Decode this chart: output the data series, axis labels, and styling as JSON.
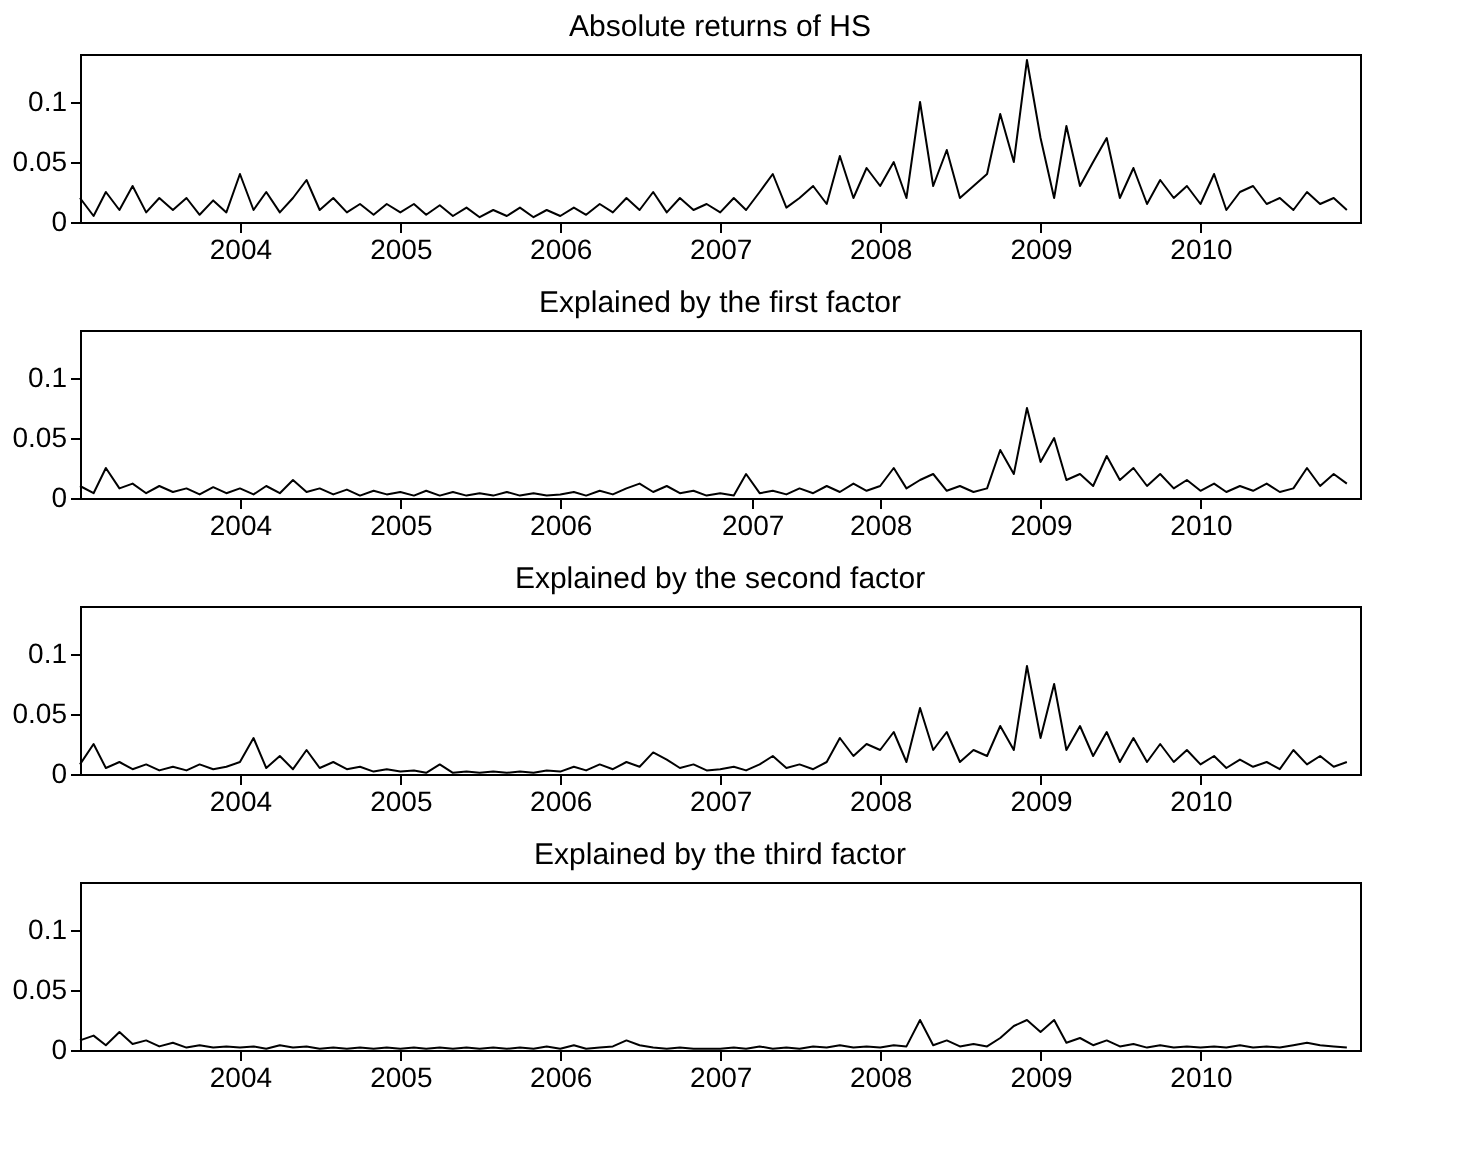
{
  "chart_data": [
    {
      "type": "line",
      "title": "Absolute returns of HS",
      "x": [
        "2003-01",
        "2003-02",
        "2003-03",
        "2003-04",
        "2003-05",
        "2003-06",
        "2003-07",
        "2003-08",
        "2003-09",
        "2003-10",
        "2003-11",
        "2003-12",
        "2004-01",
        "2004-02",
        "2004-03",
        "2004-04",
        "2004-05",
        "2004-06",
        "2004-07",
        "2004-08",
        "2004-09",
        "2004-10",
        "2004-11",
        "2004-12",
        "2005-01",
        "2005-02",
        "2005-03",
        "2005-04",
        "2005-05",
        "2005-06",
        "2005-07",
        "2005-08",
        "2005-09",
        "2005-10",
        "2005-11",
        "2005-12",
        "2006-01",
        "2006-02",
        "2006-03",
        "2006-04",
        "2006-05",
        "2006-06",
        "2006-07",
        "2006-08",
        "2006-09",
        "2006-10",
        "2006-11",
        "2006-12",
        "2007-01",
        "2007-02",
        "2007-03",
        "2007-04",
        "2007-05",
        "2007-06",
        "2007-07",
        "2007-08",
        "2007-09",
        "2007-10",
        "2007-11",
        "2007-12",
        "2008-01",
        "2008-02",
        "2008-03",
        "2008-04",
        "2008-05",
        "2008-06",
        "2008-07",
        "2008-08",
        "2008-09",
        "2008-10",
        "2008-11",
        "2008-12",
        "2009-01",
        "2009-02",
        "2009-03",
        "2009-04",
        "2009-05",
        "2009-06",
        "2009-07",
        "2009-08",
        "2009-09",
        "2009-10",
        "2009-11",
        "2009-12",
        "2010-01",
        "2010-02",
        "2010-03",
        "2010-04",
        "2010-05",
        "2010-06",
        "2010-07",
        "2010-08",
        "2010-09",
        "2010-10",
        "2010-11",
        "2010-12"
      ],
      "xlim": [
        "2003-01-01",
        "2010-12-31"
      ],
      "ylim": [
        0,
        0.14
      ],
      "yticks": [
        0,
        0.05,
        0.1
      ],
      "xticks": [
        {
          "value": "2004-01-01",
          "label": "2004"
        },
        {
          "value": "2005-01-01",
          "label": "2005"
        },
        {
          "value": "2006-01-01",
          "label": "2006"
        },
        {
          "value": "2007-01-01",
          "label": "2007"
        },
        {
          "value": "2008-01-01",
          "label": "2008"
        },
        {
          "value": "2009-01-01",
          "label": "2009"
        },
        {
          "value": "2010-01-01",
          "label": "2010"
        }
      ],
      "series": [
        {
          "color": "#000000",
          "values": [
            0.02,
            0.005,
            0.025,
            0.01,
            0.03,
            0.008,
            0.02,
            0.01,
            0.02,
            0.006,
            0.018,
            0.008,
            0.04,
            0.01,
            0.025,
            0.008,
            0.02,
            0.035,
            0.01,
            0.02,
            0.008,
            0.015,
            0.006,
            0.015,
            0.008,
            0.015,
            0.006,
            0.014,
            0.005,
            0.012,
            0.004,
            0.01,
            0.005,
            0.012,
            0.004,
            0.01,
            0.005,
            0.012,
            0.006,
            0.015,
            0.008,
            0.02,
            0.01,
            0.025,
            0.008,
            0.02,
            0.01,
            0.015,
            0.008,
            0.02,
            0.01,
            0.025,
            0.04,
            0.012,
            0.02,
            0.03,
            0.015,
            0.055,
            0.02,
            0.045,
            0.03,
            0.05,
            0.02,
            0.1,
            0.03,
            0.06,
            0.02,
            0.03,
            0.04,
            0.09,
            0.05,
            0.135,
            0.07,
            0.02,
            0.08,
            0.03,
            0.05,
            0.07,
            0.02,
            0.045,
            0.015,
            0.035,
            0.02,
            0.03,
            0.015,
            0.04,
            0.01,
            0.025,
            0.03,
            0.015,
            0.02,
            0.01,
            0.025,
            0.015,
            0.02,
            0.01
          ]
        }
      ]
    },
    {
      "type": "line",
      "title": "Explained by the first factor",
      "x": [
        "2003-01",
        "2003-02",
        "2003-03",
        "2003-04",
        "2003-05",
        "2003-06",
        "2003-07",
        "2003-08",
        "2003-09",
        "2003-10",
        "2003-11",
        "2003-12",
        "2004-01",
        "2004-02",
        "2004-03",
        "2004-04",
        "2004-05",
        "2004-06",
        "2004-07",
        "2004-08",
        "2004-09",
        "2004-10",
        "2004-11",
        "2004-12",
        "2005-01",
        "2005-02",
        "2005-03",
        "2005-04",
        "2005-05",
        "2005-06",
        "2005-07",
        "2005-08",
        "2005-09",
        "2005-10",
        "2005-11",
        "2005-12",
        "2006-01",
        "2006-02",
        "2006-03",
        "2006-04",
        "2006-05",
        "2006-06",
        "2006-07",
        "2006-08",
        "2006-09",
        "2006-10",
        "2006-11",
        "2006-12",
        "2007-01",
        "2007-02",
        "2007-03",
        "2007-04",
        "2007-05",
        "2007-06",
        "2007-07",
        "2007-08",
        "2007-09",
        "2007-10",
        "2007-11",
        "2007-12",
        "2008-01",
        "2008-02",
        "2008-03",
        "2008-04",
        "2008-05",
        "2008-06",
        "2008-07",
        "2008-08",
        "2008-09",
        "2008-10",
        "2008-11",
        "2008-12",
        "2009-01",
        "2009-02",
        "2009-03",
        "2009-04",
        "2009-05",
        "2009-06",
        "2009-07",
        "2009-08",
        "2009-09",
        "2009-10",
        "2009-11",
        "2009-12",
        "2010-01",
        "2010-02",
        "2010-03",
        "2010-04",
        "2010-05",
        "2010-06",
        "2010-07",
        "2010-08",
        "2010-09",
        "2010-10",
        "2010-11",
        "2010-12"
      ],
      "xlim": [
        "2003-01-01",
        "2010-12-31"
      ],
      "ylim": [
        0,
        0.14
      ],
      "yticks": [
        0,
        0.05,
        0.1
      ],
      "xticks": [
        {
          "value": "2004-01-01",
          "label": "2004"
        },
        {
          "value": "2005-01-01",
          "label": "2005"
        },
        {
          "value": "2006-01-01",
          "label": "2006"
        },
        {
          "value": "2007-03-15",
          "label": "2007"
        },
        {
          "value": "2008-01-01",
          "label": "2008"
        },
        {
          "value": "2009-01-01",
          "label": "2009"
        },
        {
          "value": "2010-01-01",
          "label": "2010"
        }
      ],
      "series": [
        {
          "color": "#000000",
          "values": [
            0.01,
            0.004,
            0.025,
            0.008,
            0.012,
            0.004,
            0.01,
            0.005,
            0.008,
            0.003,
            0.009,
            0.004,
            0.008,
            0.003,
            0.01,
            0.004,
            0.015,
            0.005,
            0.008,
            0.003,
            0.007,
            0.002,
            0.006,
            0.003,
            0.005,
            0.002,
            0.006,
            0.002,
            0.005,
            0.002,
            0.004,
            0.002,
            0.005,
            0.002,
            0.004,
            0.002,
            0.003,
            0.005,
            0.002,
            0.006,
            0.003,
            0.008,
            0.012,
            0.005,
            0.01,
            0.004,
            0.006,
            0.002,
            0.004,
            0.002,
            0.02,
            0.004,
            0.006,
            0.003,
            0.008,
            0.004,
            0.01,
            0.005,
            0.012,
            0.006,
            0.01,
            0.025,
            0.008,
            0.015,
            0.02,
            0.006,
            0.01,
            0.005,
            0.008,
            0.04,
            0.02,
            0.075,
            0.03,
            0.05,
            0.015,
            0.02,
            0.01,
            0.035,
            0.015,
            0.025,
            0.01,
            0.02,
            0.008,
            0.015,
            0.006,
            0.012,
            0.005,
            0.01,
            0.006,
            0.012,
            0.005,
            0.008,
            0.025,
            0.01,
            0.02,
            0.012
          ]
        }
      ]
    },
    {
      "type": "line",
      "title": "Explained by the second factor",
      "x": [
        "2003-01",
        "2003-02",
        "2003-03",
        "2003-04",
        "2003-05",
        "2003-06",
        "2003-07",
        "2003-08",
        "2003-09",
        "2003-10",
        "2003-11",
        "2003-12",
        "2004-01",
        "2004-02",
        "2004-03",
        "2004-04",
        "2004-05",
        "2004-06",
        "2004-07",
        "2004-08",
        "2004-09",
        "2004-10",
        "2004-11",
        "2004-12",
        "2005-01",
        "2005-02",
        "2005-03",
        "2005-04",
        "2005-05",
        "2005-06",
        "2005-07",
        "2005-08",
        "2005-09",
        "2005-10",
        "2005-11",
        "2005-12",
        "2006-01",
        "2006-02",
        "2006-03",
        "2006-04",
        "2006-05",
        "2006-06",
        "2006-07",
        "2006-08",
        "2006-09",
        "2006-10",
        "2006-11",
        "2006-12",
        "2007-01",
        "2007-02",
        "2007-03",
        "2007-04",
        "2007-05",
        "2007-06",
        "2007-07",
        "2007-08",
        "2007-09",
        "2007-10",
        "2007-11",
        "2007-12",
        "2008-01",
        "2008-02",
        "2008-03",
        "2008-04",
        "2008-05",
        "2008-06",
        "2008-07",
        "2008-08",
        "2008-09",
        "2008-10",
        "2008-11",
        "2008-12",
        "2009-01",
        "2009-02",
        "2009-03",
        "2009-04",
        "2009-05",
        "2009-06",
        "2009-07",
        "2009-08",
        "2009-09",
        "2009-10",
        "2009-11",
        "2009-12",
        "2010-01",
        "2010-02",
        "2010-03",
        "2010-04",
        "2010-05",
        "2010-06",
        "2010-07",
        "2010-08",
        "2010-09",
        "2010-10",
        "2010-11",
        "2010-12"
      ],
      "xlim": [
        "2003-01-01",
        "2010-12-31"
      ],
      "ylim": [
        0,
        0.14
      ],
      "yticks": [
        0,
        0.05,
        0.1
      ],
      "xticks": [
        {
          "value": "2004-01-01",
          "label": "2004"
        },
        {
          "value": "2005-01-01",
          "label": "2005"
        },
        {
          "value": "2006-01-01",
          "label": "2006"
        },
        {
          "value": "2007-01-01",
          "label": "2007"
        },
        {
          "value": "2008-01-01",
          "label": "2008"
        },
        {
          "value": "2009-01-01",
          "label": "2009"
        },
        {
          "value": "2010-01-01",
          "label": "2010"
        }
      ],
      "series": [
        {
          "color": "#000000",
          "values": [
            0.008,
            0.025,
            0.005,
            0.01,
            0.004,
            0.008,
            0.003,
            0.006,
            0.003,
            0.008,
            0.004,
            0.006,
            0.01,
            0.03,
            0.005,
            0.015,
            0.004,
            0.02,
            0.005,
            0.01,
            0.004,
            0.006,
            0.002,
            0.004,
            0.002,
            0.003,
            0.001,
            0.008,
            0.001,
            0.002,
            0.001,
            0.002,
            0.001,
            0.002,
            0.001,
            0.003,
            0.002,
            0.006,
            0.003,
            0.008,
            0.004,
            0.01,
            0.006,
            0.018,
            0.012,
            0.005,
            0.008,
            0.003,
            0.004,
            0.006,
            0.003,
            0.008,
            0.015,
            0.005,
            0.008,
            0.004,
            0.01,
            0.03,
            0.015,
            0.025,
            0.02,
            0.035,
            0.01,
            0.055,
            0.02,
            0.035,
            0.01,
            0.02,
            0.015,
            0.04,
            0.02,
            0.09,
            0.03,
            0.075,
            0.02,
            0.04,
            0.015,
            0.035,
            0.01,
            0.03,
            0.01,
            0.025,
            0.01,
            0.02,
            0.008,
            0.015,
            0.005,
            0.012,
            0.006,
            0.01,
            0.004,
            0.02,
            0.008,
            0.015,
            0.006,
            0.01
          ]
        }
      ]
    },
    {
      "type": "line",
      "title": "Explained by the third factor",
      "x": [
        "2003-01",
        "2003-02",
        "2003-03",
        "2003-04",
        "2003-05",
        "2003-06",
        "2003-07",
        "2003-08",
        "2003-09",
        "2003-10",
        "2003-11",
        "2003-12",
        "2004-01",
        "2004-02",
        "2004-03",
        "2004-04",
        "2004-05",
        "2004-06",
        "2004-07",
        "2004-08",
        "2004-09",
        "2004-10",
        "2004-11",
        "2004-12",
        "2005-01",
        "2005-02",
        "2005-03",
        "2005-04",
        "2005-05",
        "2005-06",
        "2005-07",
        "2005-08",
        "2005-09",
        "2005-10",
        "2005-11",
        "2005-12",
        "2006-01",
        "2006-02",
        "2006-03",
        "2006-04",
        "2006-05",
        "2006-06",
        "2006-07",
        "2006-08",
        "2006-09",
        "2006-10",
        "2006-11",
        "2006-12",
        "2007-01",
        "2007-02",
        "2007-03",
        "2007-04",
        "2007-05",
        "2007-06",
        "2007-07",
        "2007-08",
        "2007-09",
        "2007-10",
        "2007-11",
        "2007-12",
        "2008-01",
        "2008-02",
        "2008-03",
        "2008-04",
        "2008-05",
        "2008-06",
        "2008-07",
        "2008-08",
        "2008-09",
        "2008-10",
        "2008-11",
        "2008-12",
        "2009-01",
        "2009-02",
        "2009-03",
        "2009-04",
        "2009-05",
        "2009-06",
        "2009-07",
        "2009-08",
        "2009-09",
        "2009-10",
        "2009-11",
        "2009-12",
        "2010-01",
        "2010-02",
        "2010-03",
        "2010-04",
        "2010-05",
        "2010-06",
        "2010-07",
        "2010-08",
        "2010-09",
        "2010-10",
        "2010-11",
        "2010-12"
      ],
      "xlim": [
        "2003-01-01",
        "2010-12-31"
      ],
      "ylim": [
        0,
        0.14
      ],
      "yticks": [
        0,
        0.05,
        0.1
      ],
      "xticks": [
        {
          "value": "2004-01-01",
          "label": "2004"
        },
        {
          "value": "2005-01-01",
          "label": "2005"
        },
        {
          "value": "2006-01-01",
          "label": "2006"
        },
        {
          "value": "2007-01-01",
          "label": "2007"
        },
        {
          "value": "2008-01-01",
          "label": "2008"
        },
        {
          "value": "2009-01-01",
          "label": "2009"
        },
        {
          "value": "2010-01-01",
          "label": "2010"
        }
      ],
      "series": [
        {
          "color": "#000000",
          "values": [
            0.008,
            0.012,
            0.004,
            0.015,
            0.005,
            0.008,
            0.003,
            0.006,
            0.002,
            0.004,
            0.002,
            0.003,
            0.002,
            0.003,
            0.001,
            0.004,
            0.002,
            0.003,
            0.001,
            0.002,
            0.001,
            0.002,
            0.001,
            0.002,
            0.001,
            0.002,
            0.001,
            0.002,
            0.001,
            0.002,
            0.001,
            0.002,
            0.001,
            0.002,
            0.001,
            0.003,
            0.001,
            0.004,
            0.001,
            0.002,
            0.003,
            0.008,
            0.004,
            0.002,
            0.001,
            0.002,
            0.001,
            0.001,
            0.001,
            0.002,
            0.001,
            0.003,
            0.001,
            0.002,
            0.001,
            0.003,
            0.002,
            0.004,
            0.002,
            0.003,
            0.002,
            0.004,
            0.003,
            0.025,
            0.004,
            0.008,
            0.003,
            0.005,
            0.003,
            0.01,
            0.02,
            0.025,
            0.015,
            0.025,
            0.006,
            0.01,
            0.004,
            0.008,
            0.003,
            0.005,
            0.002,
            0.004,
            0.002,
            0.003,
            0.002,
            0.003,
            0.002,
            0.004,
            0.002,
            0.003,
            0.002,
            0.004,
            0.006,
            0.004,
            0.003,
            0.002
          ]
        }
      ]
    }
  ]
}
